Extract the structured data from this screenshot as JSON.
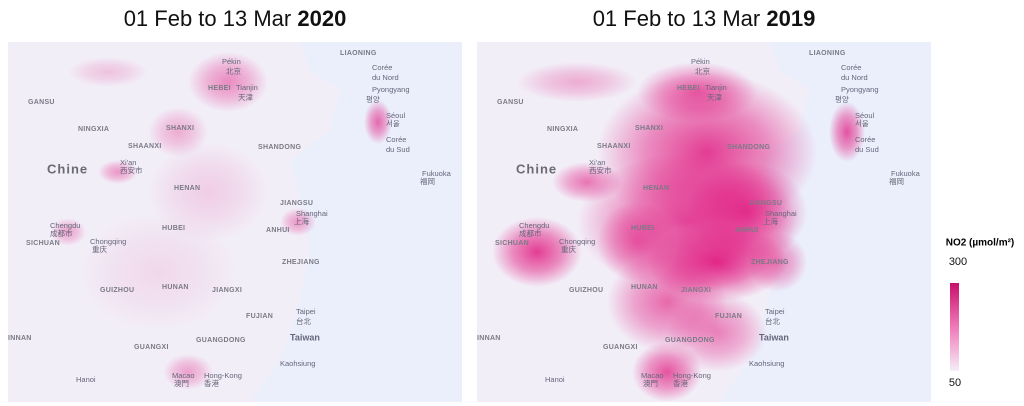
{
  "maps": [
    {
      "title": "01 Feb to 13 Mar",
      "year": "2020"
    },
    {
      "title": "01 Feb to 13 Mar",
      "year": "2019"
    }
  ],
  "place_labels": [
    "LIAONING",
    "Corée",
    "du Nord",
    "Pékin",
    "北京",
    "HEBEI",
    "Tianjin",
    "天津",
    "Pyongyang",
    "평양",
    "GANSU",
    "NINGXIA",
    "SHANXI",
    "Séoul",
    "서울",
    "Corée",
    "du Sud",
    "SHAANXI",
    "SHANDONG",
    "Xi'an",
    "西安市",
    "Chine",
    "Fukuoka",
    "福岡",
    "HENAN",
    "JIANGSU",
    "Shanghai",
    "上海",
    "Chengdu",
    "成都市",
    "SICHUAN",
    "HUBEI",
    "ANHUI",
    "Chongqing",
    "重庆",
    "ZHEJIANG",
    "GUIZHOU",
    "HUNAN",
    "JIANGXI",
    "FUJIAN",
    "Taipei",
    "台北",
    "Taiwan",
    "INNAN",
    "GUANGXI",
    "GUANGDONG",
    "Kaohsiung",
    "Macao",
    "澳門",
    "Hong-Kong",
    "香港",
    "Hanoi"
  ],
  "legend": {
    "title": "NO2 (µmol/m²)",
    "max": "300",
    "min": "50"
  }
}
